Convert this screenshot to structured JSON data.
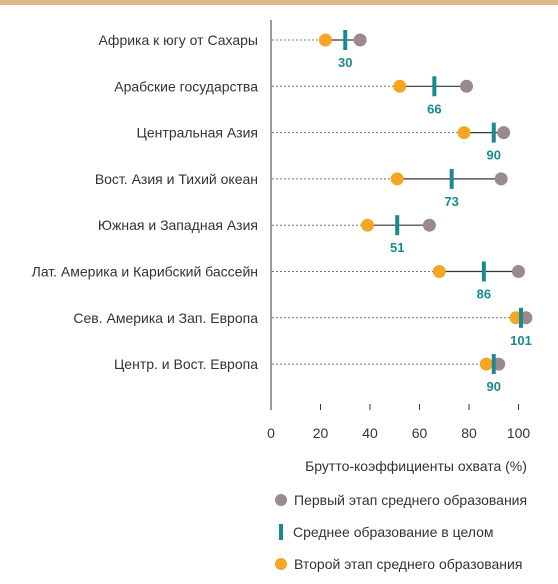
{
  "colors": {
    "first_stage": "#9b8a8d",
    "total": "#1a8a8e",
    "second_stage": "#f5a623",
    "top_rule": "#dfb987"
  },
  "chart_data": {
    "type": "dot",
    "title": "",
    "xlabel": "Брутто-коэффициенты охвата (%)",
    "ylabel": "",
    "xlim": [
      0,
      100
    ],
    "xticks": [
      0,
      20,
      40,
      60,
      80,
      100
    ],
    "grid": false,
    "legend_position": "bottom-right",
    "categories": [
      "Африка к югу от Сахары",
      "Арабские государства",
      "Центральная Азия",
      "Вост. Азия и Тихий океан",
      "Южная и Западная Азия",
      "Лат. Америка и Карибский бассейн",
      "Сев. Америка и Зап. Европа",
      "Центр. и Вост. Европа"
    ],
    "series": [
      {
        "name": "Первый этап среднего образования",
        "values": [
          36,
          79,
          94,
          93,
          64,
          100,
          103,
          92
        ]
      },
      {
        "name": "Среднее образование в целом",
        "values": [
          30,
          66,
          90,
          73,
          51,
          86,
          101,
          90
        ]
      },
      {
        "name": "Второй этап среднего образования",
        "values": [
          22,
          52,
          78,
          51,
          39,
          68,
          99,
          87
        ]
      }
    ],
    "value_labels": [
      "30",
      "66",
      "90",
      "73",
      "51",
      "86",
      "101",
      "90"
    ]
  }
}
